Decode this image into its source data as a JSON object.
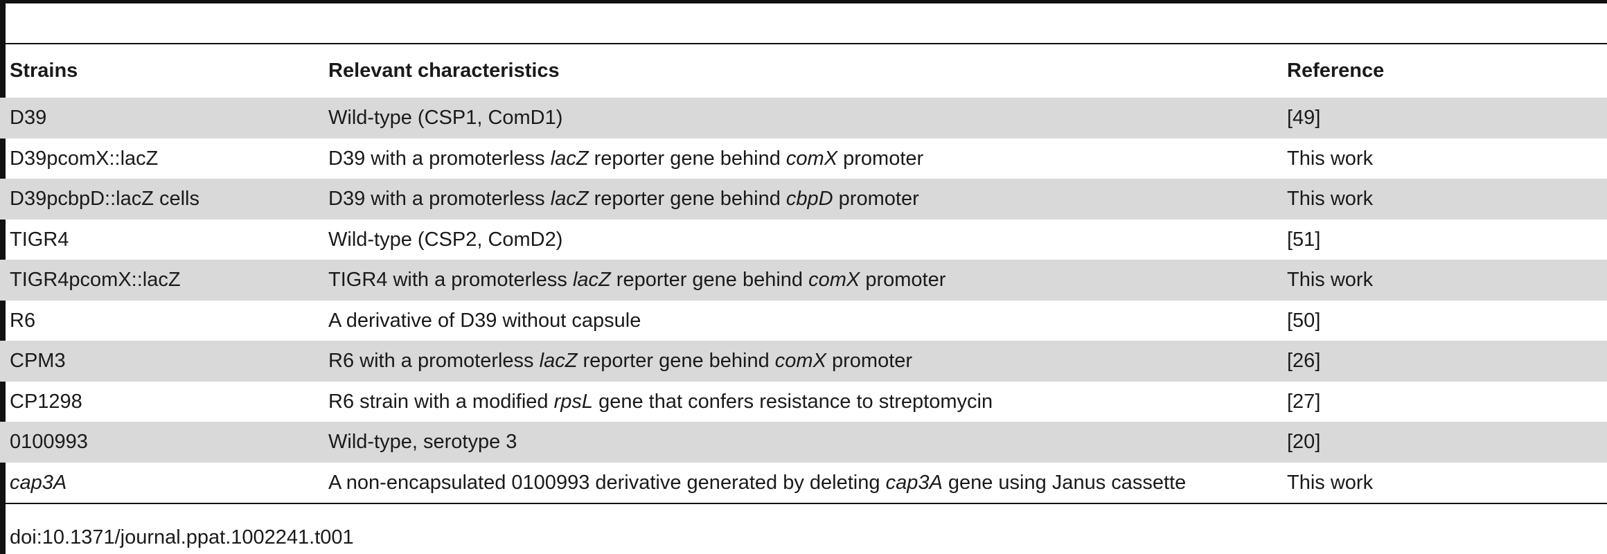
{
  "table": {
    "headers": {
      "strains": "Strains",
      "characteristics": "Relevant characteristics",
      "reference": "Reference"
    },
    "rows": [
      {
        "strain": [
          {
            "t": "D39",
            "i": false
          }
        ],
        "characteristics": [
          {
            "t": "Wild-type (CSP1, ComD1)",
            "i": false
          }
        ],
        "reference": "[49]"
      },
      {
        "strain": [
          {
            "t": "D39pcomX::lacZ",
            "i": false
          }
        ],
        "characteristics": [
          {
            "t": "D39 with a promoterless ",
            "i": false
          },
          {
            "t": "lacZ",
            "i": true
          },
          {
            "t": " reporter gene behind ",
            "i": false
          },
          {
            "t": "comX",
            "i": true
          },
          {
            "t": " promoter",
            "i": false
          }
        ],
        "reference": "This work"
      },
      {
        "strain": [
          {
            "t": "D39pcbpD::lacZ cells",
            "i": false
          }
        ],
        "characteristics": [
          {
            "t": "D39 with a promoterless ",
            "i": false
          },
          {
            "t": "lacZ",
            "i": true
          },
          {
            "t": " reporter gene behind ",
            "i": false
          },
          {
            "t": "cbpD",
            "i": true
          },
          {
            "t": " promoter",
            "i": false
          }
        ],
        "reference": "This work"
      },
      {
        "strain": [
          {
            "t": "TIGR4",
            "i": false
          }
        ],
        "characteristics": [
          {
            "t": "Wild-type (CSP2, ComD2)",
            "i": false
          }
        ],
        "reference": "[51]"
      },
      {
        "strain": [
          {
            "t": "TIGR4pcomX::lacZ",
            "i": false
          }
        ],
        "characteristics": [
          {
            "t": "TIGR4 with a promoterless ",
            "i": false
          },
          {
            "t": "lacZ",
            "i": true
          },
          {
            "t": " reporter gene behind ",
            "i": false
          },
          {
            "t": "comX",
            "i": true
          },
          {
            "t": " promoter",
            "i": false
          }
        ],
        "reference": "This work"
      },
      {
        "strain": [
          {
            "t": "R6",
            "i": false
          }
        ],
        "characteristics": [
          {
            "t": "A derivative of D39 without capsule",
            "i": false
          }
        ],
        "reference": "[50]"
      },
      {
        "strain": [
          {
            "t": "CPM3",
            "i": false
          }
        ],
        "characteristics": [
          {
            "t": "R6 with a promoterless ",
            "i": false
          },
          {
            "t": "lacZ",
            "i": true
          },
          {
            "t": " reporter gene behind ",
            "i": false
          },
          {
            "t": "comX",
            "i": true
          },
          {
            "t": " promoter",
            "i": false
          }
        ],
        "reference": "[26]"
      },
      {
        "strain": [
          {
            "t": "CP1298",
            "i": false
          }
        ],
        "characteristics": [
          {
            "t": "R6 strain with a modified ",
            "i": false
          },
          {
            "t": "rpsL",
            "i": true
          },
          {
            "t": " gene that confers resistance to streptomycin",
            "i": false
          }
        ],
        "reference": "[27]"
      },
      {
        "strain": [
          {
            "t": "0100993",
            "i": false
          }
        ],
        "characteristics": [
          {
            "t": "Wild-type, serotype 3",
            "i": false
          }
        ],
        "reference": "[20]"
      },
      {
        "strain": [
          {
            "t": "cap3A",
            "i": true
          }
        ],
        "characteristics": [
          {
            "t": "A non-encapsulated 0100993 derivative generated by deleting ",
            "i": false
          },
          {
            "t": "cap3A",
            "i": true
          },
          {
            "t": " gene using Janus cassette",
            "i": false
          }
        ],
        "reference": "This work"
      }
    ]
  },
  "footer": {
    "doi": "doi:10.1371/journal.ppat.1002241.t001"
  },
  "colors": {
    "row_shade": "#d9d9d9",
    "rule": "#111111",
    "text": "#1a1a1a"
  }
}
